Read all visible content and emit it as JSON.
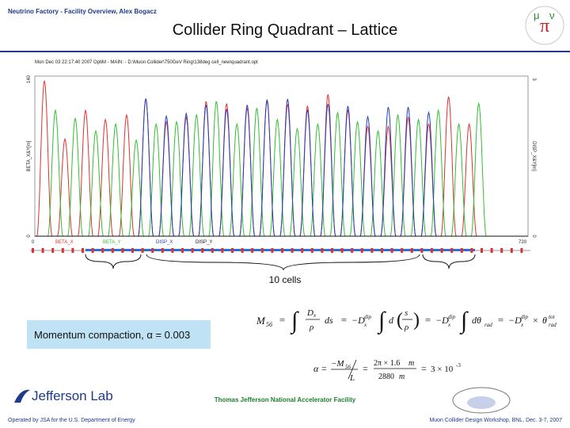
{
  "header": {
    "left": "Neutrino Factory - Facility Overview, Alex Bogacz",
    "title": "Collider Ring Quadrant – Lattice"
  },
  "plot_header": "Mon Dec 03 22:17:40 2007  OptiM - MAIN: - D:\\Muon Collider\\750GeV Ring\\138deg cell_new\\quadrant.opt",
  "chart_data": {
    "type": "line",
    "x": {
      "label": "",
      "range": [
        0,
        720
      ],
      "ticks": [
        "0",
        "720"
      ]
    },
    "y_left": {
      "label": "BETA_X&Y[m]",
      "range": [
        0,
        140
      ],
      "ticks": [
        "0",
        "140"
      ]
    },
    "y_right": {
      "label": "DISP_X&Y[m]",
      "range": [
        0,
        3
      ],
      "ticks": [
        "0",
        "3"
      ]
    },
    "series": [
      {
        "name": "BETA_X",
        "color": "#e03030",
        "axis": "left",
        "peak_positions": [
          14,
          44,
          74,
          103,
          134,
          162,
          192,
          221,
          250,
          280,
          310,
          339,
          369,
          398,
          428,
          457,
          486,
          516,
          545,
          575,
          604,
          634
        ],
        "peak_values": [
          136,
          85,
          110,
          102,
          106,
          120,
          100,
          104,
          118,
          116,
          112,
          118,
          115,
          114,
          124,
          110,
          96,
          96,
          104,
          98,
          122,
          98
        ]
      },
      {
        "name": "BETA_Y",
        "color": "#30c030",
        "axis": "left",
        "peak_positions": [
          30,
          59,
          89,
          118,
          148,
          177,
          207,
          236,
          265,
          295,
          324,
          354,
          383,
          413,
          442,
          471,
          501,
          530,
          560,
          589,
          619,
          648
        ],
        "peak_values": [
          110,
          103,
          92,
          98,
          84,
          98,
          100,
          106,
          118,
          98,
          112,
          102,
          94,
          98,
          108,
          100,
          92,
          106,
          102,
          110,
          98,
          116
        ]
      },
      {
        "name": "DISP_X",
        "color": "#2040c0",
        "axis": "right",
        "peak_positions": [
          162,
          192,
          221,
          250,
          280,
          310,
          339,
          369,
          398,
          428,
          457,
          486,
          516,
          545,
          575
        ],
        "peak_values": [
          2.58,
          2.25,
          2.3,
          2.46,
          2.38,
          2.46,
          2.56,
          2.57,
          2.36,
          2.48,
          2.44,
          2.24,
          2.42,
          2.42,
          2.32
        ]
      },
      {
        "name": "DISP_Y",
        "color": "#111111",
        "axis": "right",
        "flat_value": 0
      }
    ],
    "legend": [
      "BETA_X",
      "BETA_Y",
      "DISP_X",
      "DISP_Y"
    ]
  },
  "annotations": {
    "cells": "10 cells",
    "momentum": "Momentum compaction, α = 0.003"
  },
  "footer": {
    "center": "Thomas Jefferson National Accelerator Facility",
    "left": "Operated by JSA for the U.S. Department of Energy",
    "right": "Muon Collider Design Workshop, BNL, Dec. 3-7, 2007",
    "logo": "Jefferson Lab"
  },
  "colors": {
    "accent": "#1f3a8a",
    "green": "#1a7f2e",
    "box": "#bfe3f5"
  }
}
